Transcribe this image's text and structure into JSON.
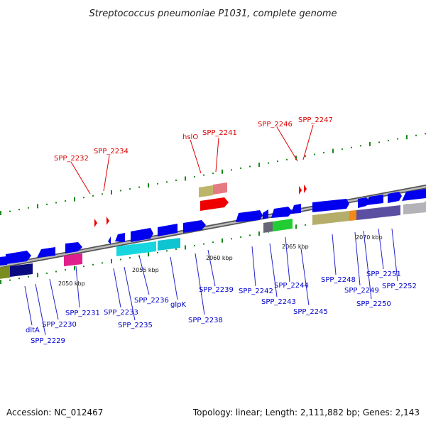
{
  "title": "Streptococcus pneumoniae P1031, complete genome",
  "footer": {
    "accession": "Accession: NC_012467",
    "stats": "Topology: linear; Length: 2,111,882 bp; Genes: 2,143"
  },
  "colors": {
    "gene_forward": "#0000ee",
    "gene_reverse": "#0000ee",
    "label_blue": "#0000cc",
    "label_red": "#dd0000",
    "backbone": "#888888",
    "tick_green": "#1a8a1a"
  },
  "ticks": [
    "2050 kbp",
    "2055 kbp",
    "2060 kbp",
    "2065 kbp",
    "2070 kbp"
  ],
  "genes_below": [
    "SPP_2231",
    "SPP_2230",
    "dltA",
    "SPP_2229",
    "SPP_2233",
    "SPP_2235",
    "SPP_2236",
    "glpK",
    "SPP_2238",
    "SPP_2239",
    "SPP_2242",
    "SPP_2243",
    "SPP_2244",
    "SPP_2245",
    "SPP_2248",
    "SPP_2249",
    "SPP_2250",
    "SPP_2251",
    "SPP_2252"
  ],
  "genes_above": [
    "SPP_2232",
    "SPP_2234",
    "hslO",
    "SPP_2241",
    "SPP_2246",
    "SPP_2247"
  ]
}
